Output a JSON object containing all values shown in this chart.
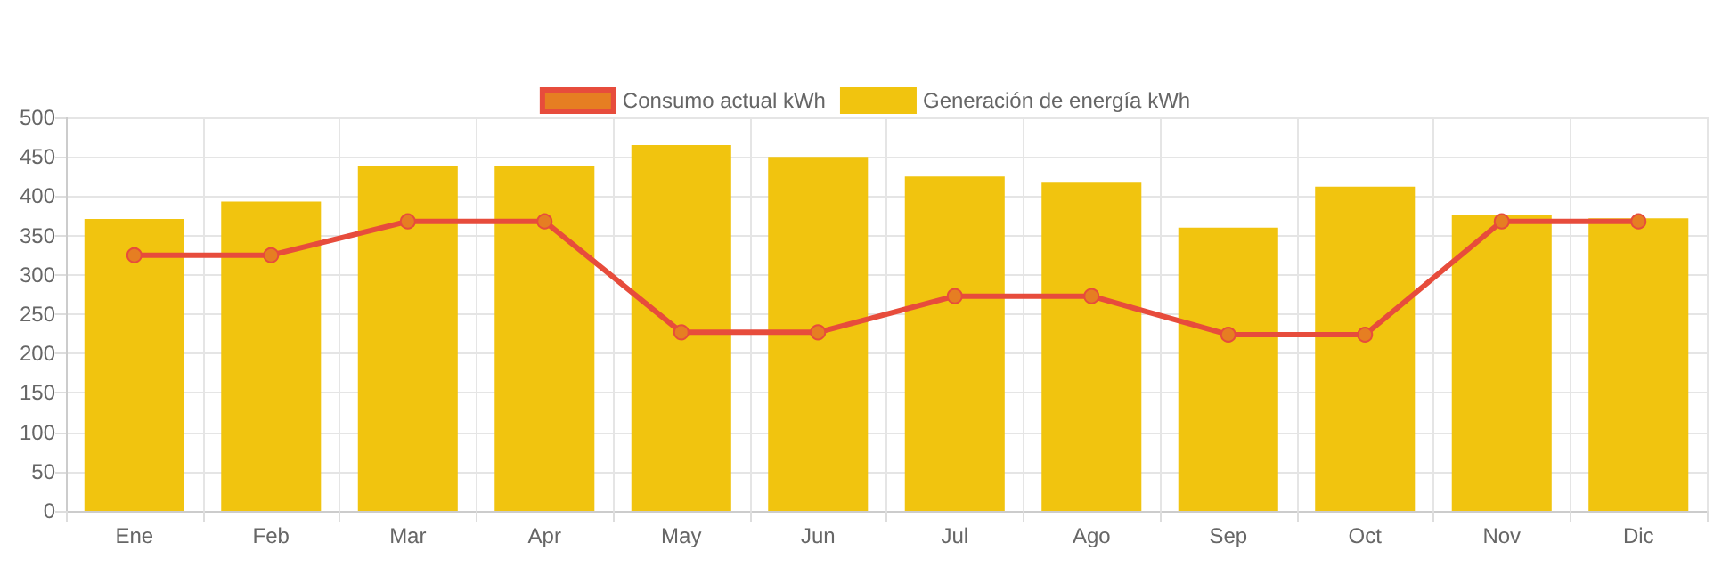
{
  "chart_data": {
    "type": "bar",
    "categories": [
      "Ene",
      "Feb",
      "Mar",
      "Apr",
      "May",
      "Jun",
      "Jul",
      "Ago",
      "Sep",
      "Oct",
      "Nov",
      "Dic"
    ],
    "series": [
      {
        "name": "Consumo actual kWh",
        "type": "line",
        "color": "#e74c3c",
        "values": [
          325,
          325,
          368,
          368,
          227,
          227,
          273,
          273,
          224,
          224,
          368,
          368
        ]
      },
      {
        "name": "Generación de energía kWh",
        "color": "#f1c40f",
        "values": [
          371,
          393,
          438,
          439,
          465,
          450,
          425,
          417,
          360,
          412,
          376,
          372
        ]
      }
    ],
    "ylim": [
      0,
      500
    ],
    "yticks": [
      0,
      50,
      100,
      150,
      200,
      250,
      300,
      350,
      400,
      450,
      500
    ],
    "grid": true,
    "legend": "top",
    "marker": "circle",
    "line_style": "solid"
  }
}
